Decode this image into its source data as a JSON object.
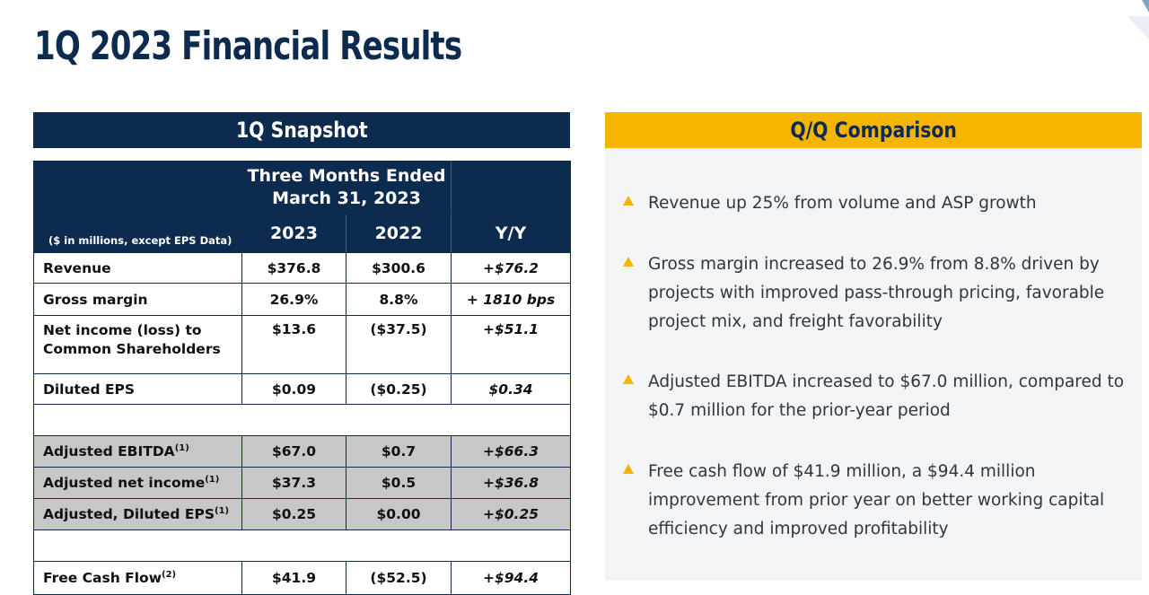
{
  "page": {
    "title": "1Q 2023 Financial Results"
  },
  "snapshot": {
    "header": "1Q Snapshot",
    "period_label": "Three Months Ended March 31, 2023",
    "units_note": "($ in millions, except EPS Data)",
    "columns": [
      "2023",
      "2022",
      "Y/Y"
    ],
    "rows": [
      {
        "label": "Revenue",
        "sup": "",
        "v2023": "$376.8",
        "v2022": "$300.6",
        "yy": "+$76.2"
      },
      {
        "label": "Gross margin",
        "sup": "",
        "v2023": "26.9%",
        "v2022": "8.8%",
        "yy": "+ 1810 bps"
      },
      {
        "label": "Net income (loss) to Common Shareholders",
        "sup": "",
        "v2023": "$13.6",
        "v2022": "($37.5)",
        "yy": "+$51.1"
      },
      {
        "label": "Diluted EPS",
        "sup": "",
        "v2023": "$0.09",
        "v2022": "($0.25)",
        "yy": "$0.34"
      },
      {
        "label": "Adjusted EBITDA",
        "sup": "(1)",
        "v2023": "$67.0",
        "v2022": "$0.7",
        "yy": "+$66.3"
      },
      {
        "label": "Adjusted net income",
        "sup": "(1)",
        "v2023": "$37.3",
        "v2022": "$0.5",
        "yy": "+$36.8"
      },
      {
        "label": "Adjusted, Diluted EPS",
        "sup": "(1)",
        "v2023": "$0.25",
        "v2022": "$0.00",
        "yy": "+$0.25"
      },
      {
        "label": "Free Cash Flow",
        "sup": "(2)",
        "v2023": "$41.9",
        "v2022": "($52.5)",
        "yy": "+$94.4"
      }
    ]
  },
  "comparison": {
    "header": "Q/Q Comparison",
    "bullets": [
      "Revenue up 25% from volume and ASP growth",
      "Gross margin increased to 26.9% from 8.8% driven by projects with improved pass-through pricing, favorable project mix, and freight favorability",
      "Adjusted EBITDA increased to $67.0 million, compared to $0.7 million for the prior-year period",
      "Free cash flow of $41.9 million, a $94.4 million improvement from prior year on better working capital efficiency and improved profitability"
    ]
  },
  "colors": {
    "navy": "#0d2b4e",
    "gold": "#f5b400",
    "grey_row": "#c7c7c7",
    "panel_bg": "#f3f4f6"
  }
}
